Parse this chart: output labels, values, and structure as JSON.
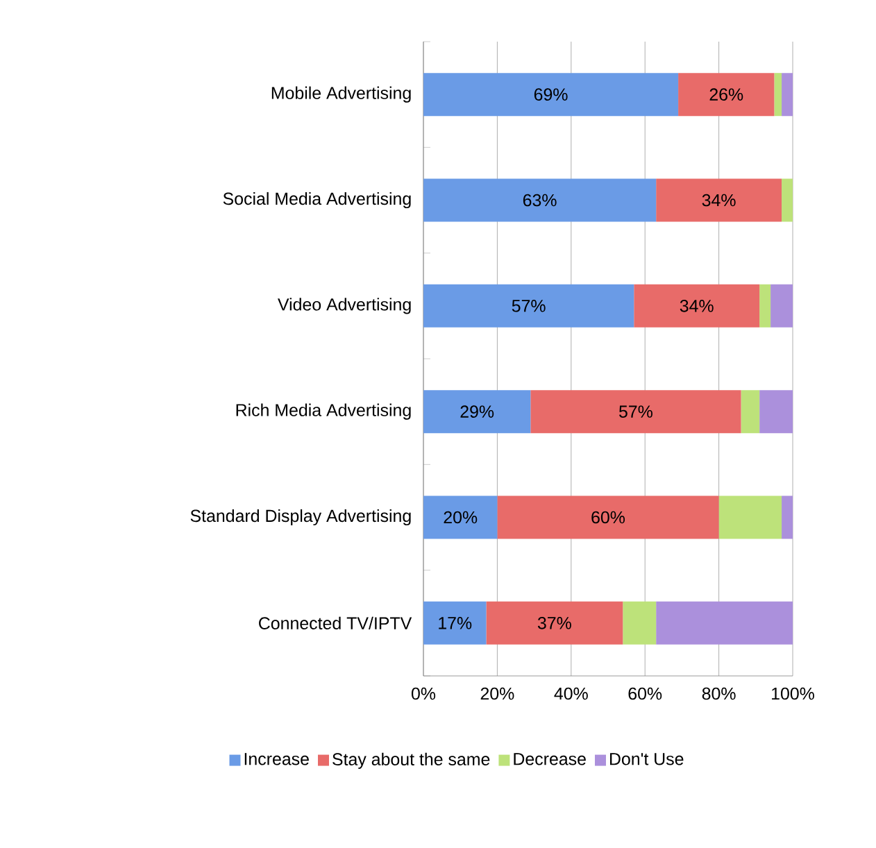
{
  "chart_data": {
    "type": "bar",
    "orientation": "horizontal",
    "stacked": true,
    "categories": [
      "Mobile Advertising",
      "Social Media Advertising",
      "Video Advertising",
      "Rich Media Advertising",
      "Standard Display Advertising",
      "Connected TV/IPTV"
    ],
    "series": [
      {
        "name": "Increase",
        "color": "#6a9be6",
        "values": [
          69,
          63,
          57,
          29,
          20,
          17
        ],
        "value_labels": [
          "69%",
          "63%",
          "57%",
          "29%",
          "20%",
          "17%"
        ]
      },
      {
        "name": "Stay about the same",
        "color": "#e86b69",
        "values": [
          26,
          34,
          34,
          57,
          60,
          37
        ],
        "value_labels": [
          "26%",
          "34%",
          "34%",
          "57%",
          "60%",
          "37%"
        ]
      },
      {
        "name": "Decrease",
        "color": "#bde27a",
        "values": [
          2,
          3,
          3,
          5,
          17,
          9
        ]
      },
      {
        "name": "Don't Use",
        "color": "#ab90dc",
        "values": [
          3,
          0,
          6,
          9,
          3,
          37
        ]
      }
    ],
    "xlim": [
      0,
      100
    ],
    "xticks": [
      {
        "value": 0,
        "label": "0%"
      },
      {
        "value": 20,
        "label": "20%"
      },
      {
        "value": 40,
        "label": "40%"
      },
      {
        "value": 60,
        "label": "60%"
      },
      {
        "value": 80,
        "label": "80%"
      },
      {
        "value": 100,
        "label": "100%"
      }
    ],
    "grid": "x",
    "legend": "bottom"
  }
}
